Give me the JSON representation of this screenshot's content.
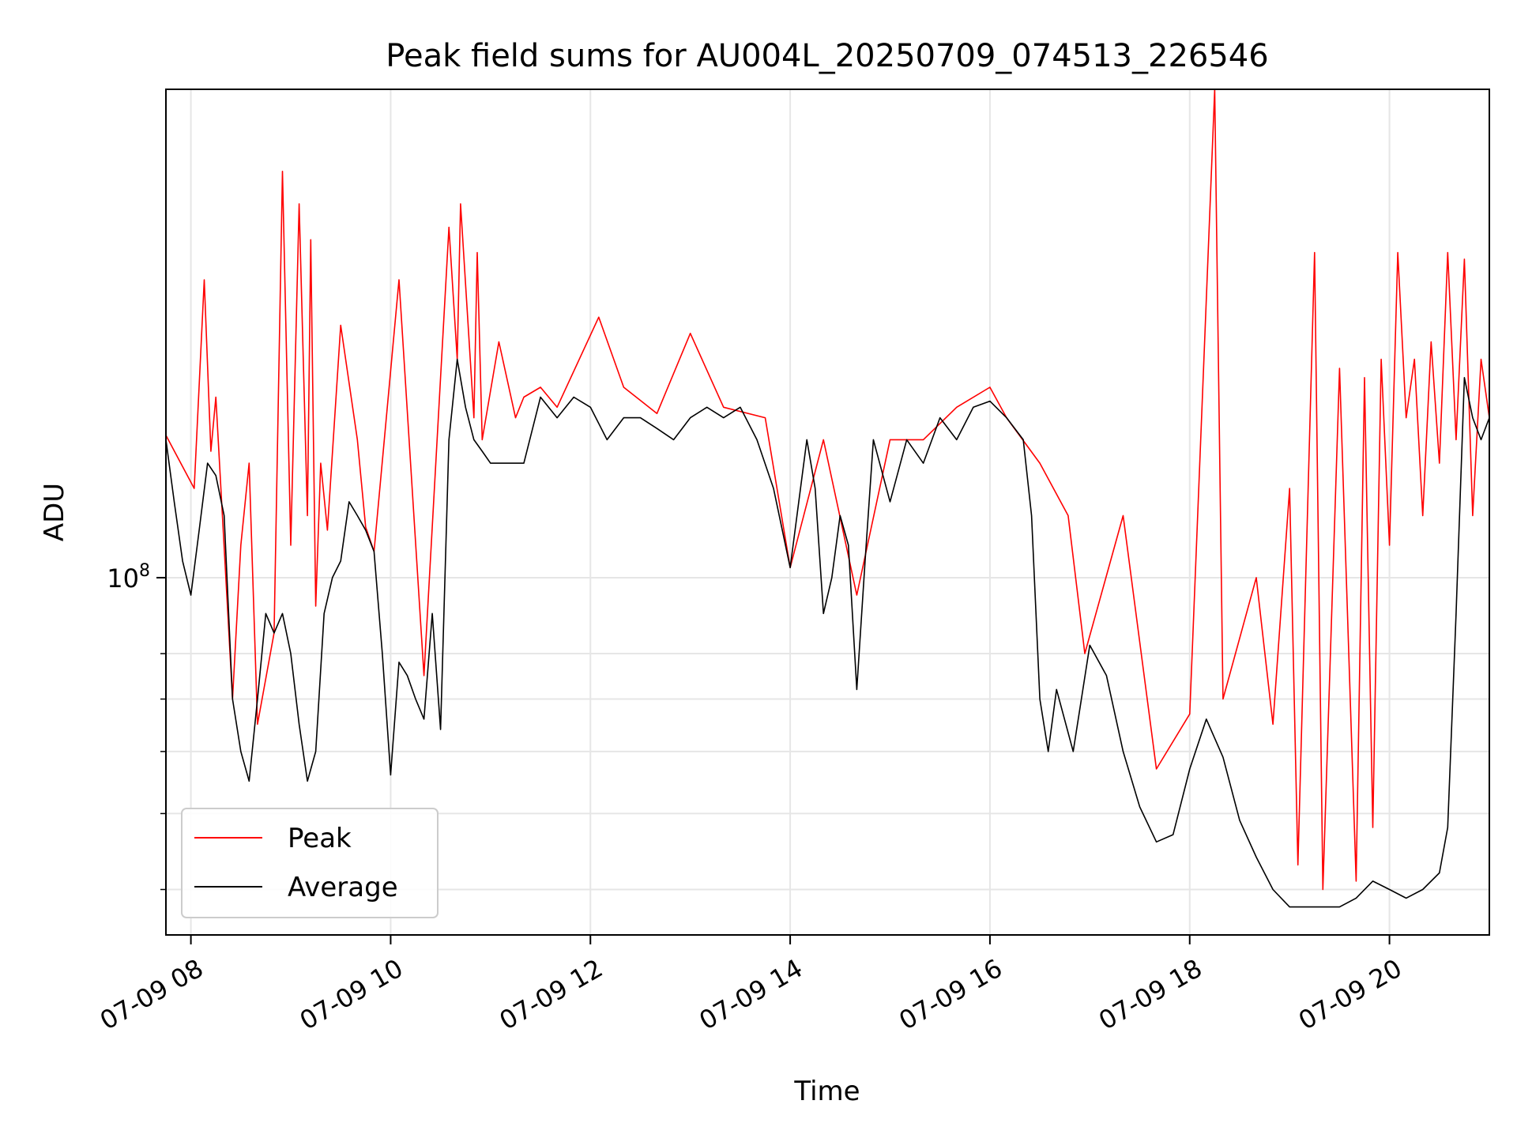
{
  "chart_data": {
    "type": "line",
    "title": "Peak field sums for AU004L_20250709_074513_226546",
    "xlabel": "Time",
    "ylabel": "ADU",
    "x_range": [
      "07-09 07:45",
      "07-09 21:00"
    ],
    "y_scale": "log",
    "ylim": [
      35000000,
      420000000
    ],
    "y_major_ticks": [
      {
        "value": 100000000,
        "label_base": "10",
        "label_exp": "8"
      }
    ],
    "y_minor_ticks": [
      40000000,
      50000000,
      60000000,
      70000000,
      80000000
    ],
    "x_ticks": [
      {
        "t": "07-09 08:00",
        "label": "07-09 08"
      },
      {
        "t": "07-09 10:00",
        "label": "07-09 10"
      },
      {
        "t": "07-09 12:00",
        "label": "07-09 12"
      },
      {
        "t": "07-09 14:00",
        "label": "07-09 14"
      },
      {
        "t": "07-09 16:00",
        "label": "07-09 16"
      },
      {
        "t": "07-09 18:00",
        "label": "07-09 18"
      },
      {
        "t": "07-09 20:00",
        "label": "07-09 20"
      }
    ],
    "grid": true,
    "legend_position": "lower-left",
    "series": [
      {
        "name": "Average",
        "color": "#000000",
        "x": [
          "07-09 07:45",
          "07-09 07:50",
          "07-09 07:55",
          "07-09 08:00",
          "07-09 08:05",
          "07-09 08:10",
          "07-09 08:15",
          "07-09 08:20",
          "07-09 08:25",
          "07-09 08:30",
          "07-09 08:35",
          "07-09 08:40",
          "07-09 08:45",
          "07-09 08:50",
          "07-09 08:55",
          "07-09 09:00",
          "07-09 09:05",
          "07-09 09:10",
          "07-09 09:15",
          "07-09 09:20",
          "07-09 09:25",
          "07-09 09:30",
          "07-09 09:35",
          "07-09 09:40",
          "07-09 09:45",
          "07-09 09:50",
          "07-09 09:55",
          "07-09 10:00",
          "07-09 10:05",
          "07-09 10:10",
          "07-09 10:15",
          "07-09 10:20",
          "07-09 10:25",
          "07-09 10:30",
          "07-09 10:35",
          "07-09 10:40",
          "07-09 10:45",
          "07-09 10:50",
          "07-09 10:55",
          "07-09 11:00",
          "07-09 11:10",
          "07-09 11:20",
          "07-09 11:30",
          "07-09 11:40",
          "07-09 11:50",
          "07-09 12:00",
          "07-09 12:10",
          "07-09 12:20",
          "07-09 12:30",
          "07-09 12:40",
          "07-09 12:50",
          "07-09 13:00",
          "07-09 13:10",
          "07-09 13:20",
          "07-09 13:30",
          "07-09 13:40",
          "07-09 13:50",
          "07-09 14:00",
          "07-09 14:10",
          "07-09 14:15",
          "07-09 14:20",
          "07-09 14:25",
          "07-09 14:30",
          "07-09 14:35",
          "07-09 14:40",
          "07-09 14:45",
          "07-09 14:50",
          "07-09 15:00",
          "07-09 15:10",
          "07-09 15:20",
          "07-09 15:30",
          "07-09 15:40",
          "07-09 15:50",
          "07-09 16:00",
          "07-09 16:10",
          "07-09 16:20",
          "07-09 16:25",
          "07-09 16:30",
          "07-09 16:35",
          "07-09 16:40",
          "07-09 16:50",
          "07-09 17:00",
          "07-09 17:10",
          "07-09 17:20",
          "07-09 17:30",
          "07-09 17:40",
          "07-09 17:50",
          "07-09 18:00",
          "07-09 18:10",
          "07-09 18:20",
          "07-09 18:30",
          "07-09 18:40",
          "07-09 18:50",
          "07-09 19:00",
          "07-09 19:10",
          "07-09 19:20",
          "07-09 19:30",
          "07-09 19:40",
          "07-09 19:50",
          "07-09 20:00",
          "07-09 20:10",
          "07-09 20:20",
          "07-09 20:30",
          "07-09 20:35",
          "07-09 20:40",
          "07-09 20:45",
          "07-09 20:50",
          "07-09 20:55",
          "07-09 21:00"
        ],
        "y": [
          150000000,
          125000000,
          105000000,
          95000000,
          115000000,
          140000000,
          135000000,
          120000000,
          70000000,
          60000000,
          55000000,
          70000000,
          90000000,
          85000000,
          90000000,
          80000000,
          65000000,
          55000000,
          60000000,
          90000000,
          100000000,
          105000000,
          125000000,
          120000000,
          115000000,
          108000000,
          80000000,
          56000000,
          78000000,
          75000000,
          70000000,
          66000000,
          90000000,
          64000000,
          150000000,
          190000000,
          165000000,
          150000000,
          145000000,
          140000000,
          140000000,
          140000000,
          170000000,
          160000000,
          170000000,
          165000000,
          150000000,
          160000000,
          160000000,
          155000000,
          150000000,
          160000000,
          165000000,
          160000000,
          165000000,
          150000000,
          130000000,
          103000000,
          150000000,
          130000000,
          90000000,
          100000000,
          120000000,
          110000000,
          72000000,
          105000000,
          150000000,
          125000000,
          150000000,
          140000000,
          160000000,
          150000000,
          165000000,
          168000000,
          160000000,
          150000000,
          120000000,
          70000000,
          60000000,
          72000000,
          60000000,
          82000000,
          75000000,
          60000000,
          51000000,
          46000000,
          47000000,
          57000000,
          66000000,
          59000000,
          49000000,
          44000000,
          40000000,
          38000000,
          38000000,
          38000000,
          38000000,
          39000000,
          41000000,
          40000000,
          39000000,
          40000000,
          42000000,
          48000000,
          90000000,
          180000000,
          160000000,
          150000000,
          160000000
        ]
      },
      {
        "name": "Peak",
        "color": "#ff0000",
        "x": [
          "07-09 07:45",
          "07-09 08:02",
          "07-09 08:08",
          "07-09 08:12",
          "07-09 08:15",
          "07-09 08:25",
          "07-09 08:30",
          "07-09 08:35",
          "07-09 08:40",
          "07-09 08:50",
          "07-09 08:55",
          "07-09 09:00",
          "07-09 09:05",
          "07-09 09:10",
          "07-09 09:12",
          "07-09 09:15",
          "07-09 09:18",
          "07-09 09:22",
          "07-09 09:30",
          "07-09 09:40",
          "07-09 09:45",
          "07-09 09:50",
          "07-09 10:05",
          "07-09 10:20",
          "07-09 10:35",
          "07-09 10:40",
          "07-09 10:42",
          "07-09 10:50",
          "07-09 10:52",
          "07-09 10:55",
          "07-09 11:05",
          "07-09 11:15",
          "07-09 11:20",
          "07-09 11:30",
          "07-09 11:40",
          "07-09 12:05",
          "07-09 12:20",
          "07-09 12:40",
          "07-09 13:00",
          "07-09 13:20",
          "07-09 13:45",
          "07-09 14:00",
          "07-09 14:20",
          "07-09 14:40",
          "07-09 15:00",
          "07-09 15:20",
          "07-09 15:40",
          "07-09 16:00",
          "07-09 16:10",
          "07-09 16:30",
          "07-09 16:47",
          "07-09 16:57",
          "07-09 17:20",
          "07-09 17:40",
          "07-09 18:00",
          "07-09 18:15",
          "07-09 18:20",
          "07-09 18:40",
          "07-09 18:50",
          "07-09 19:00",
          "07-09 19:05",
          "07-09 19:15",
          "07-09 19:20",
          "07-09 19:30",
          "07-09 19:40",
          "07-09 19:45",
          "07-09 19:50",
          "07-09 19:55",
          "07-09 20:00",
          "07-09 20:05",
          "07-09 20:10",
          "07-09 20:15",
          "07-09 20:20",
          "07-09 20:25",
          "07-09 20:30",
          "07-09 20:35",
          "07-09 20:40",
          "07-09 20:45",
          "07-09 20:50",
          "07-09 20:55",
          "07-09 21:00"
        ],
        "y": [
          152000000,
          130000000,
          240000000,
          145000000,
          170000000,
          70000000,
          110000000,
          140000000,
          65000000,
          85000000,
          330000000,
          110000000,
          300000000,
          120000000,
          270000000,
          92000000,
          140000000,
          115000000,
          210000000,
          150000000,
          116000000,
          108000000,
          240000000,
          75000000,
          280000000,
          190000000,
          300000000,
          160000000,
          260000000,
          150000000,
          200000000,
          160000000,
          170000000,
          175000000,
          165000000,
          215000000,
          175000000,
          162000000,
          205000000,
          165000000,
          160000000,
          103000000,
          150000000,
          95000000,
          150000000,
          150000000,
          165000000,
          175000000,
          160000000,
          140000000,
          120000000,
          80000000,
          120000000,
          57000000,
          67000000,
          420000000,
          70000000,
          100000000,
          65000000,
          130000000,
          43000000,
          260000000,
          40000000,
          185000000,
          41000000,
          180000000,
          48000000,
          190000000,
          110000000,
          260000000,
          160000000,
          190000000,
          120000000,
          200000000,
          140000000,
          260000000,
          150000000,
          255000000,
          120000000,
          190000000,
          160000000
        ]
      }
    ]
  }
}
